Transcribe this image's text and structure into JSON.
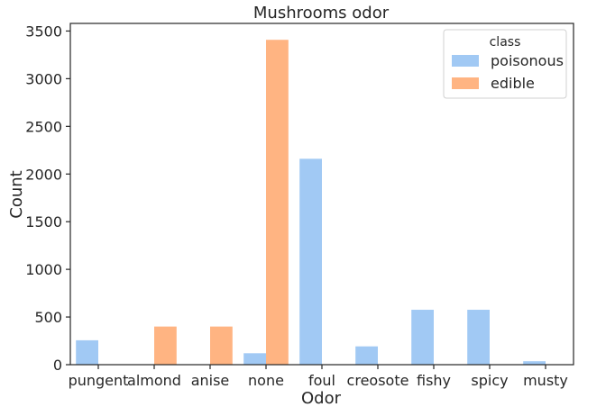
{
  "chart_data": {
    "type": "bar",
    "title": "Mushrooms odor",
    "xlabel": "Odor",
    "ylabel": "Count",
    "categories": [
      "pungent",
      "almond",
      "anise",
      "none",
      "foul",
      "creosote",
      "fishy",
      "spicy",
      "musty"
    ],
    "series": [
      {
        "name": "poisonous",
        "color": "#a1c9f4",
        "values": [
          256,
          0,
          0,
          120,
          2160,
          192,
          576,
          576,
          36
        ]
      },
      {
        "name": "edible",
        "color": "#ffb482",
        "values": [
          0,
          400,
          400,
          3408,
          0,
          0,
          0,
          0,
          0
        ]
      }
    ],
    "ylim": [
      0,
      3580
    ],
    "yticks": [
      0,
      500,
      1000,
      1500,
      2000,
      2500,
      3000,
      3500
    ],
    "grid": false,
    "legend": {
      "title": "class",
      "placement": "top-right"
    }
  }
}
